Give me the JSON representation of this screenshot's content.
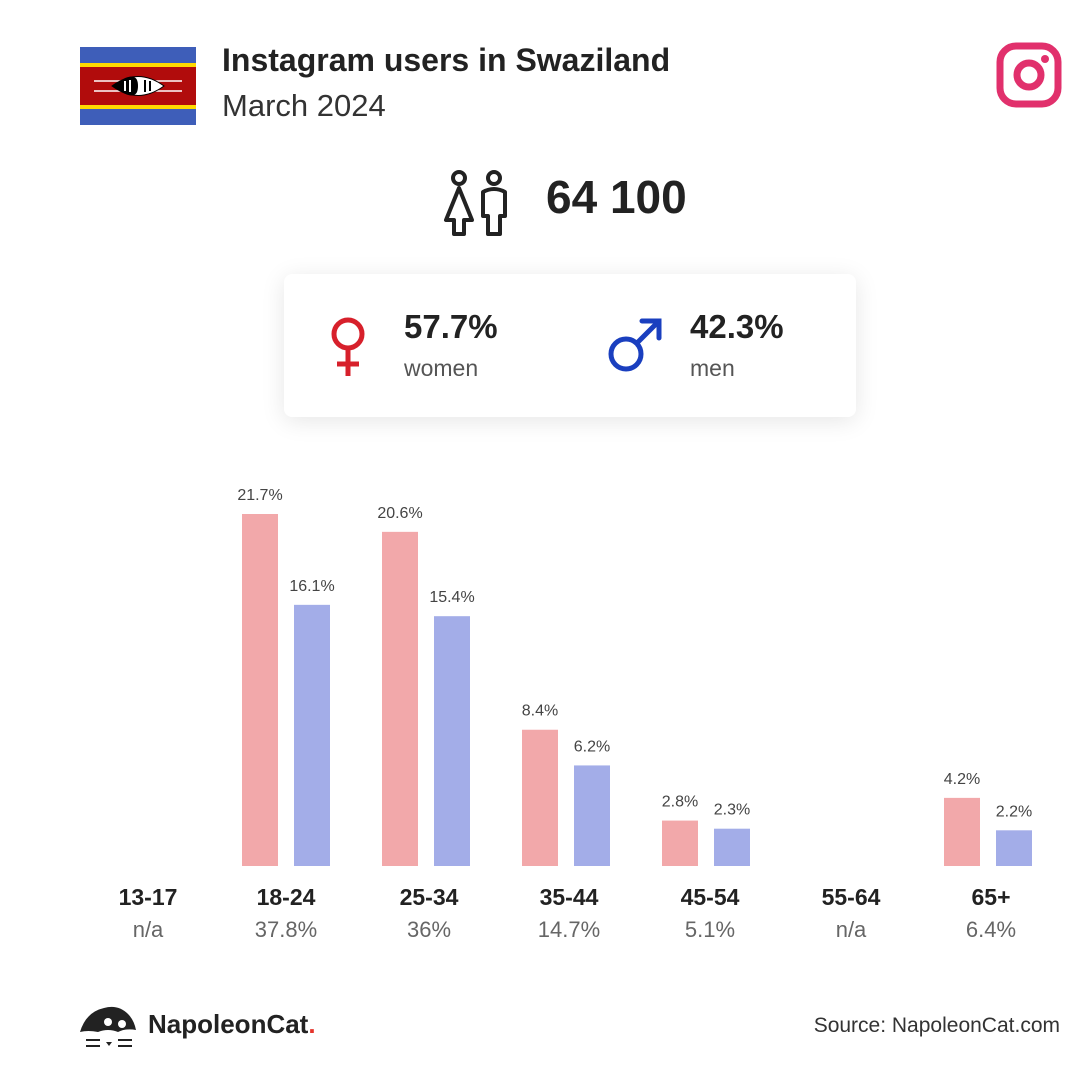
{
  "header": {
    "title": "Instagram users in Swaziland",
    "subtitle": "March 2024",
    "flag_icon": "swaziland-flag-icon",
    "platform_icon": "instagram-icon"
  },
  "total": {
    "icon": "users-icon",
    "value": "64 100"
  },
  "gender": {
    "women": {
      "icon": "female-symbol-icon",
      "value": "57.7%",
      "label": "women",
      "color": "#d7202b"
    },
    "men": {
      "icon": "male-symbol-icon",
      "value": "42.3%",
      "label": "men",
      "color": "#1a3fbf"
    }
  },
  "colors": {
    "women_bar": "#f2a8aa",
    "men_bar": "#a3ade8",
    "brand_accent": "#e5342b",
    "instagram": "#e1306c"
  },
  "chart_data": {
    "type": "bar",
    "categories": [
      "13-17",
      "18-24",
      "25-34",
      "35-44",
      "45-54",
      "55-64",
      "65+"
    ],
    "category_totals": [
      "n/a",
      "37.8%",
      "36%",
      "14.7%",
      "5.1%",
      "n/a",
      "6.4%"
    ],
    "series": [
      {
        "name": "women",
        "values": [
          null,
          21.7,
          20.6,
          8.4,
          2.8,
          null,
          4.2
        ],
        "labels": [
          "",
          "21.7%",
          "20.6%",
          "8.4%",
          "2.8%",
          "",
          "4.2%"
        ]
      },
      {
        "name": "men",
        "values": [
          null,
          16.1,
          15.4,
          6.2,
          2.3,
          null,
          2.2
        ],
        "labels": [
          "",
          "16.1%",
          "15.4%",
          "6.2%",
          "2.3%",
          "",
          "2.2%"
        ]
      }
    ],
    "ylim": [
      0,
      21.7
    ],
    "grid": false,
    "legend": "none"
  },
  "footer": {
    "brand_name": "NapoleonCat",
    "brand_dot": ".",
    "logo_icon": "napoleoncat-logo-icon",
    "source": "Source: NapoleonCat.com"
  }
}
